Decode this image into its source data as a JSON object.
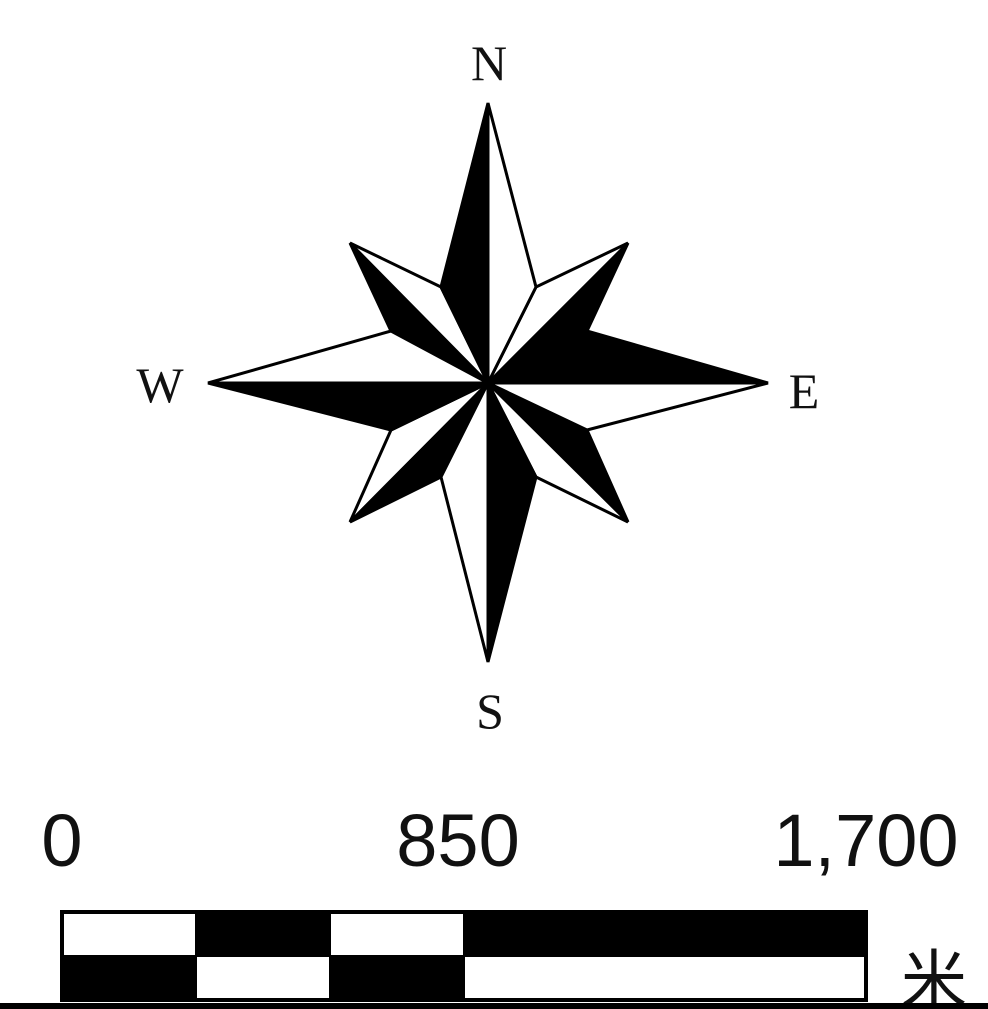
{
  "compass": {
    "north": "N",
    "south": "S",
    "east": "E",
    "west": "W"
  },
  "scale_bar": {
    "labels": [
      "0",
      "850",
      "1,700"
    ],
    "unit": "米",
    "colors": {
      "dark": "#000000",
      "light": "#ffffff"
    }
  }
}
